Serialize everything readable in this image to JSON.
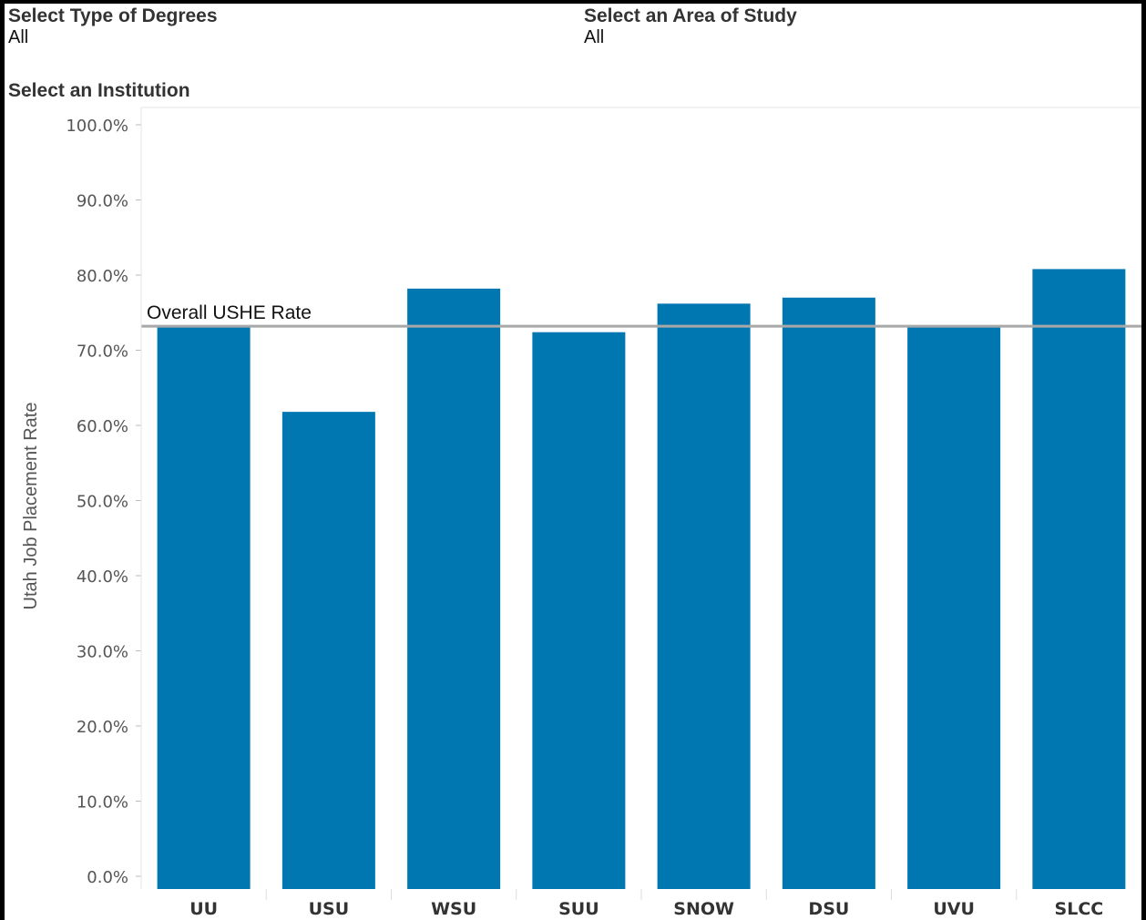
{
  "filters": {
    "degrees": {
      "label": "Select Type of Degrees",
      "value": "All"
    },
    "area": {
      "label": "Select an Area of Study",
      "value": "All"
    },
    "institution": {
      "label": "Select an Institution"
    }
  },
  "colors": {
    "bar": "#0077b0",
    "reference_line": "#a8a8a8",
    "axis_text": "#555555",
    "category_text": "#333333"
  },
  "chart_data": {
    "type": "bar",
    "categories": [
      "UU",
      "USU",
      "WSU",
      "SUU",
      "SNOW",
      "DSU",
      "UVU",
      "SLCC"
    ],
    "values": [
      73.3,
      61.8,
      78.2,
      72.4,
      76.2,
      77.0,
      73.2,
      80.8
    ],
    "ylabel": "Utah Job Placement Rate",
    "ylim": [
      0,
      100
    ],
    "yticks": [
      "0.0%",
      "10.0%",
      "20.0%",
      "30.0%",
      "40.0%",
      "50.0%",
      "60.0%",
      "70.0%",
      "80.0%",
      "90.0%",
      "100.0%"
    ],
    "reference_line": {
      "label": "Overall USHE Rate",
      "value": 73.2
    },
    "grid": false
  }
}
